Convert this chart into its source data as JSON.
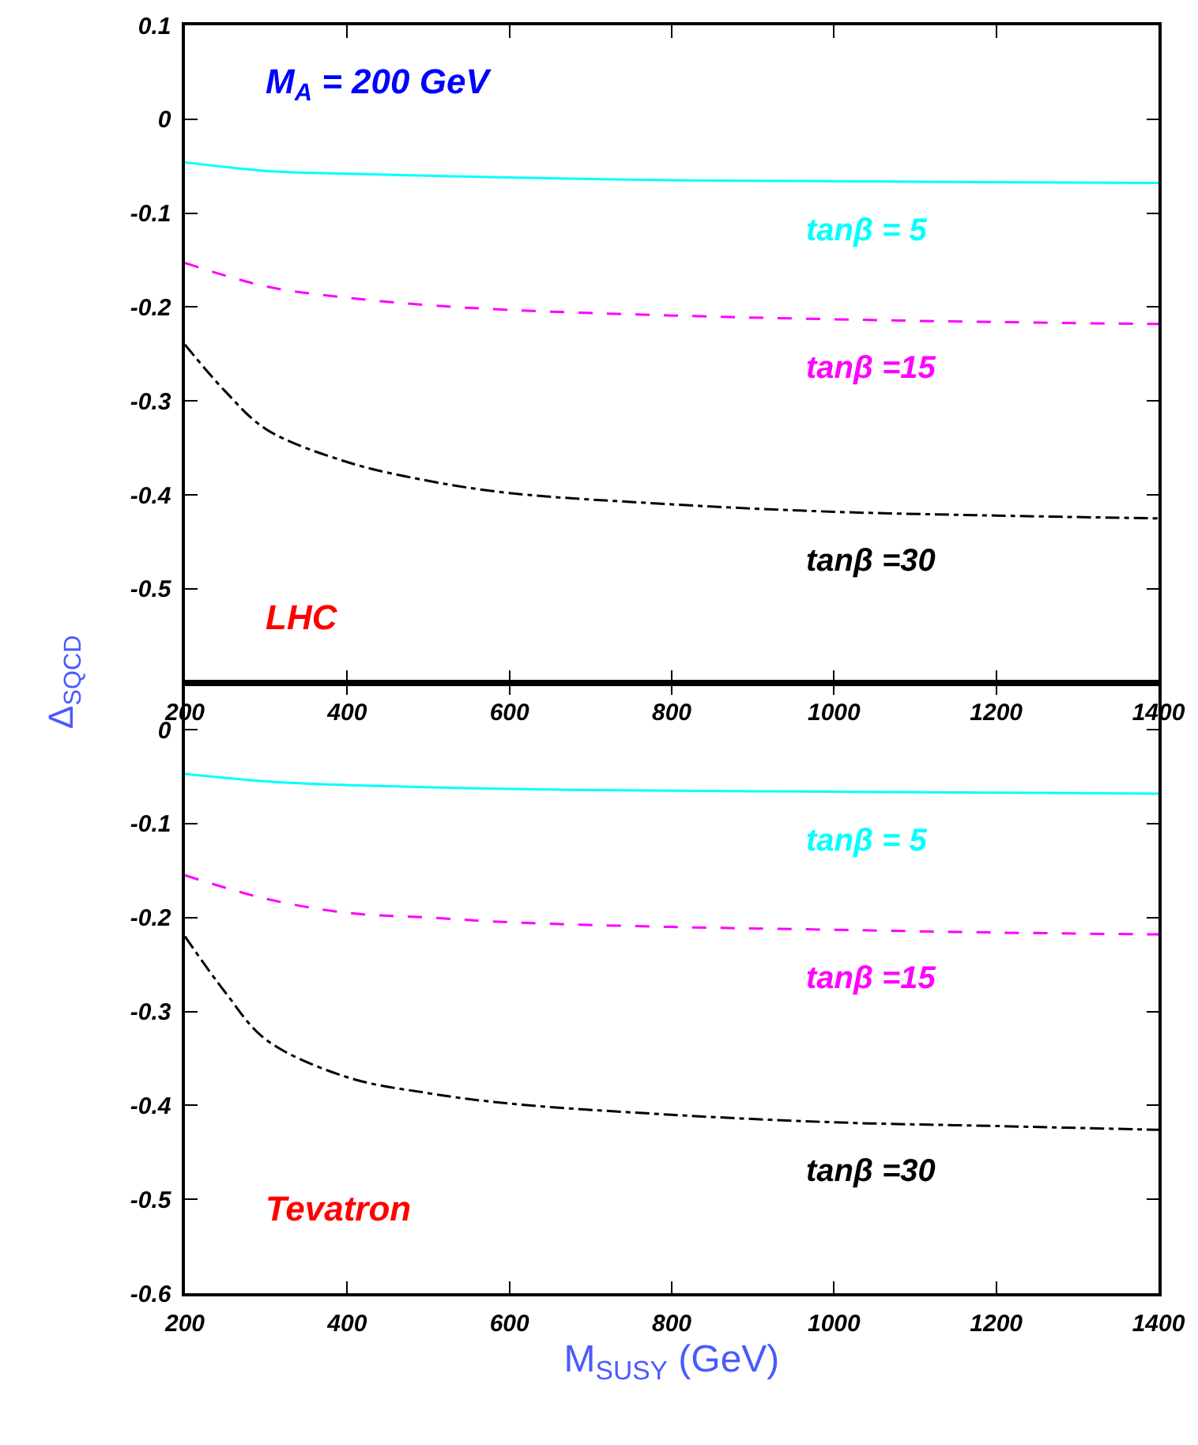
{
  "chart_data": [
    {
      "type": "line",
      "ylabel": "Δ$_{SQCD}$",
      "annotations": [
        "M$_{A}$ = 200 GeV",
        "LHC"
      ],
      "xlim": [
        200,
        1400
      ],
      "xticks": [
        200,
        400,
        600,
        800,
        1000,
        1200,
        1400
      ],
      "ylim": [
        -0.6,
        0.1
      ],
      "yticks": [
        0.1,
        0,
        -0.1,
        -0.2,
        -0.3,
        -0.4,
        -0.5
      ],
      "grid": false,
      "legend": false,
      "marker": "none",
      "series": [
        {
          "name": "tanβ = 5",
          "color": "#00ffff",
          "line_style": "solid",
          "x": [
            200,
            300,
            400,
            600,
            800,
            1000,
            1200,
            1400
          ],
          "values": [
            -0.046,
            -0.055,
            -0.058,
            -0.062,
            -0.065,
            -0.066,
            -0.067,
            -0.068
          ]
        },
        {
          "name": "tanβ =15",
          "color": "#ff00ff",
          "line_style": "dashed",
          "x": [
            200,
            300,
            400,
            500,
            600,
            800,
            1000,
            1200,
            1400
          ],
          "values": [
            -0.153,
            -0.178,
            -0.19,
            -0.198,
            -0.203,
            -0.209,
            -0.213,
            -0.216,
            -0.218
          ]
        },
        {
          "name": "tanβ =30",
          "color": "#000000",
          "line_style": "dashdot",
          "x": [
            200,
            250,
            300,
            400,
            500,
            600,
            800,
            1000,
            1200,
            1400
          ],
          "values": [
            -0.24,
            -0.29,
            -0.33,
            -0.365,
            -0.385,
            -0.398,
            -0.41,
            -0.418,
            -0.422,
            -0.425
          ]
        }
      ]
    },
    {
      "type": "line",
      "xlabel": "M$_{SUSY}$ (GeV)",
      "annotations": [
        "Tevatron"
      ],
      "xlim": [
        200,
        1400
      ],
      "xticks": [
        200,
        400,
        600,
        800,
        1000,
        1200,
        1400
      ],
      "ylim": [
        -0.6,
        0.05
      ],
      "yticks": [
        0,
        -0.1,
        -0.2,
        -0.3,
        -0.4,
        -0.5,
        -0.6
      ],
      "grid": false,
      "legend": false,
      "marker": "none",
      "series": [
        {
          "name": "tanβ = 5",
          "color": "#00ffff",
          "line_style": "solid",
          "x": [
            200,
            300,
            400,
            600,
            800,
            1000,
            1200,
            1400
          ],
          "values": [
            -0.047,
            -0.055,
            -0.059,
            -0.063,
            -0.065,
            -0.066,
            -0.067,
            -0.068
          ]
        },
        {
          "name": "tanβ =15",
          "color": "#ff00ff",
          "line_style": "dashed",
          "x": [
            200,
            300,
            400,
            500,
            600,
            800,
            1000,
            1200,
            1400
          ],
          "values": [
            -0.155,
            -0.18,
            -0.195,
            -0.2,
            -0.205,
            -0.21,
            -0.213,
            -0.216,
            -0.218
          ]
        },
        {
          "name": "tanβ =30",
          "color": "#000000",
          "line_style": "dashdot",
          "x": [
            200,
            250,
            300,
            400,
            500,
            600,
            800,
            1000,
            1200,
            1400
          ],
          "values": [
            -0.22,
            -0.28,
            -0.33,
            -0.37,
            -0.387,
            -0.398,
            -0.41,
            -0.418,
            -0.422,
            -0.426
          ]
        }
      ]
    }
  ]
}
